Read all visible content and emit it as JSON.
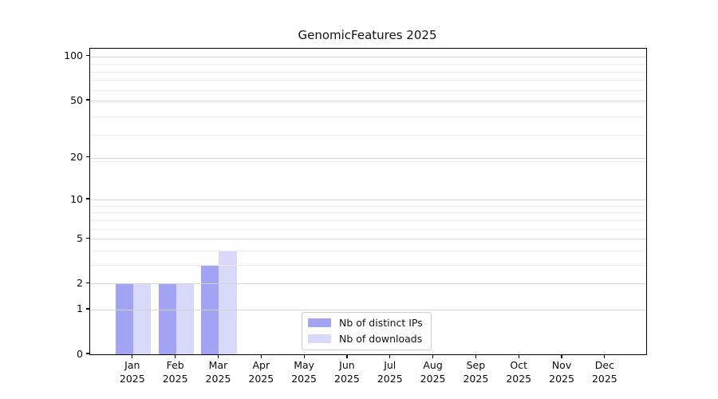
{
  "chart_data": {
    "type": "bar",
    "title": "GenomicFeatures 2025",
    "categories": [
      "Jan",
      "Feb",
      "Mar",
      "Apr",
      "May",
      "Jun",
      "Jul",
      "Aug",
      "Sep",
      "Oct",
      "Nov",
      "Dec"
    ],
    "category_year": "2025",
    "series": [
      {
        "name": "Nb of distinct IPs",
        "color": "#a3a3f3",
        "values": [
          2,
          2,
          3,
          0,
          0,
          0,
          0,
          0,
          0,
          0,
          0,
          0
        ]
      },
      {
        "name": "Nb of downloads",
        "color": "#d8d8f9",
        "values": [
          2,
          2,
          4,
          0,
          0,
          0,
          0,
          0,
          0,
          0,
          0,
          0
        ]
      }
    ],
    "yscale": "log1p",
    "ylim": [
      0,
      113
    ],
    "xlim": [
      0,
      12.95
    ],
    "y_major_ticks": [
      0,
      1,
      2,
      5,
      10,
      20,
      50,
      100
    ],
    "y_minor_gridlines": [
      3,
      4,
      6,
      7,
      8,
      9,
      19,
      29,
      39,
      49,
      59,
      69,
      79,
      89
    ],
    "grid": true,
    "legend_position": "lower center",
    "bar_width_units": 0.41,
    "colors": {
      "major_grid": "#d4d4d4",
      "minor_grid": "#ececec",
      "axis": "#000000",
      "background": "#ffffff",
      "legend_border": "#cccccc"
    }
  }
}
